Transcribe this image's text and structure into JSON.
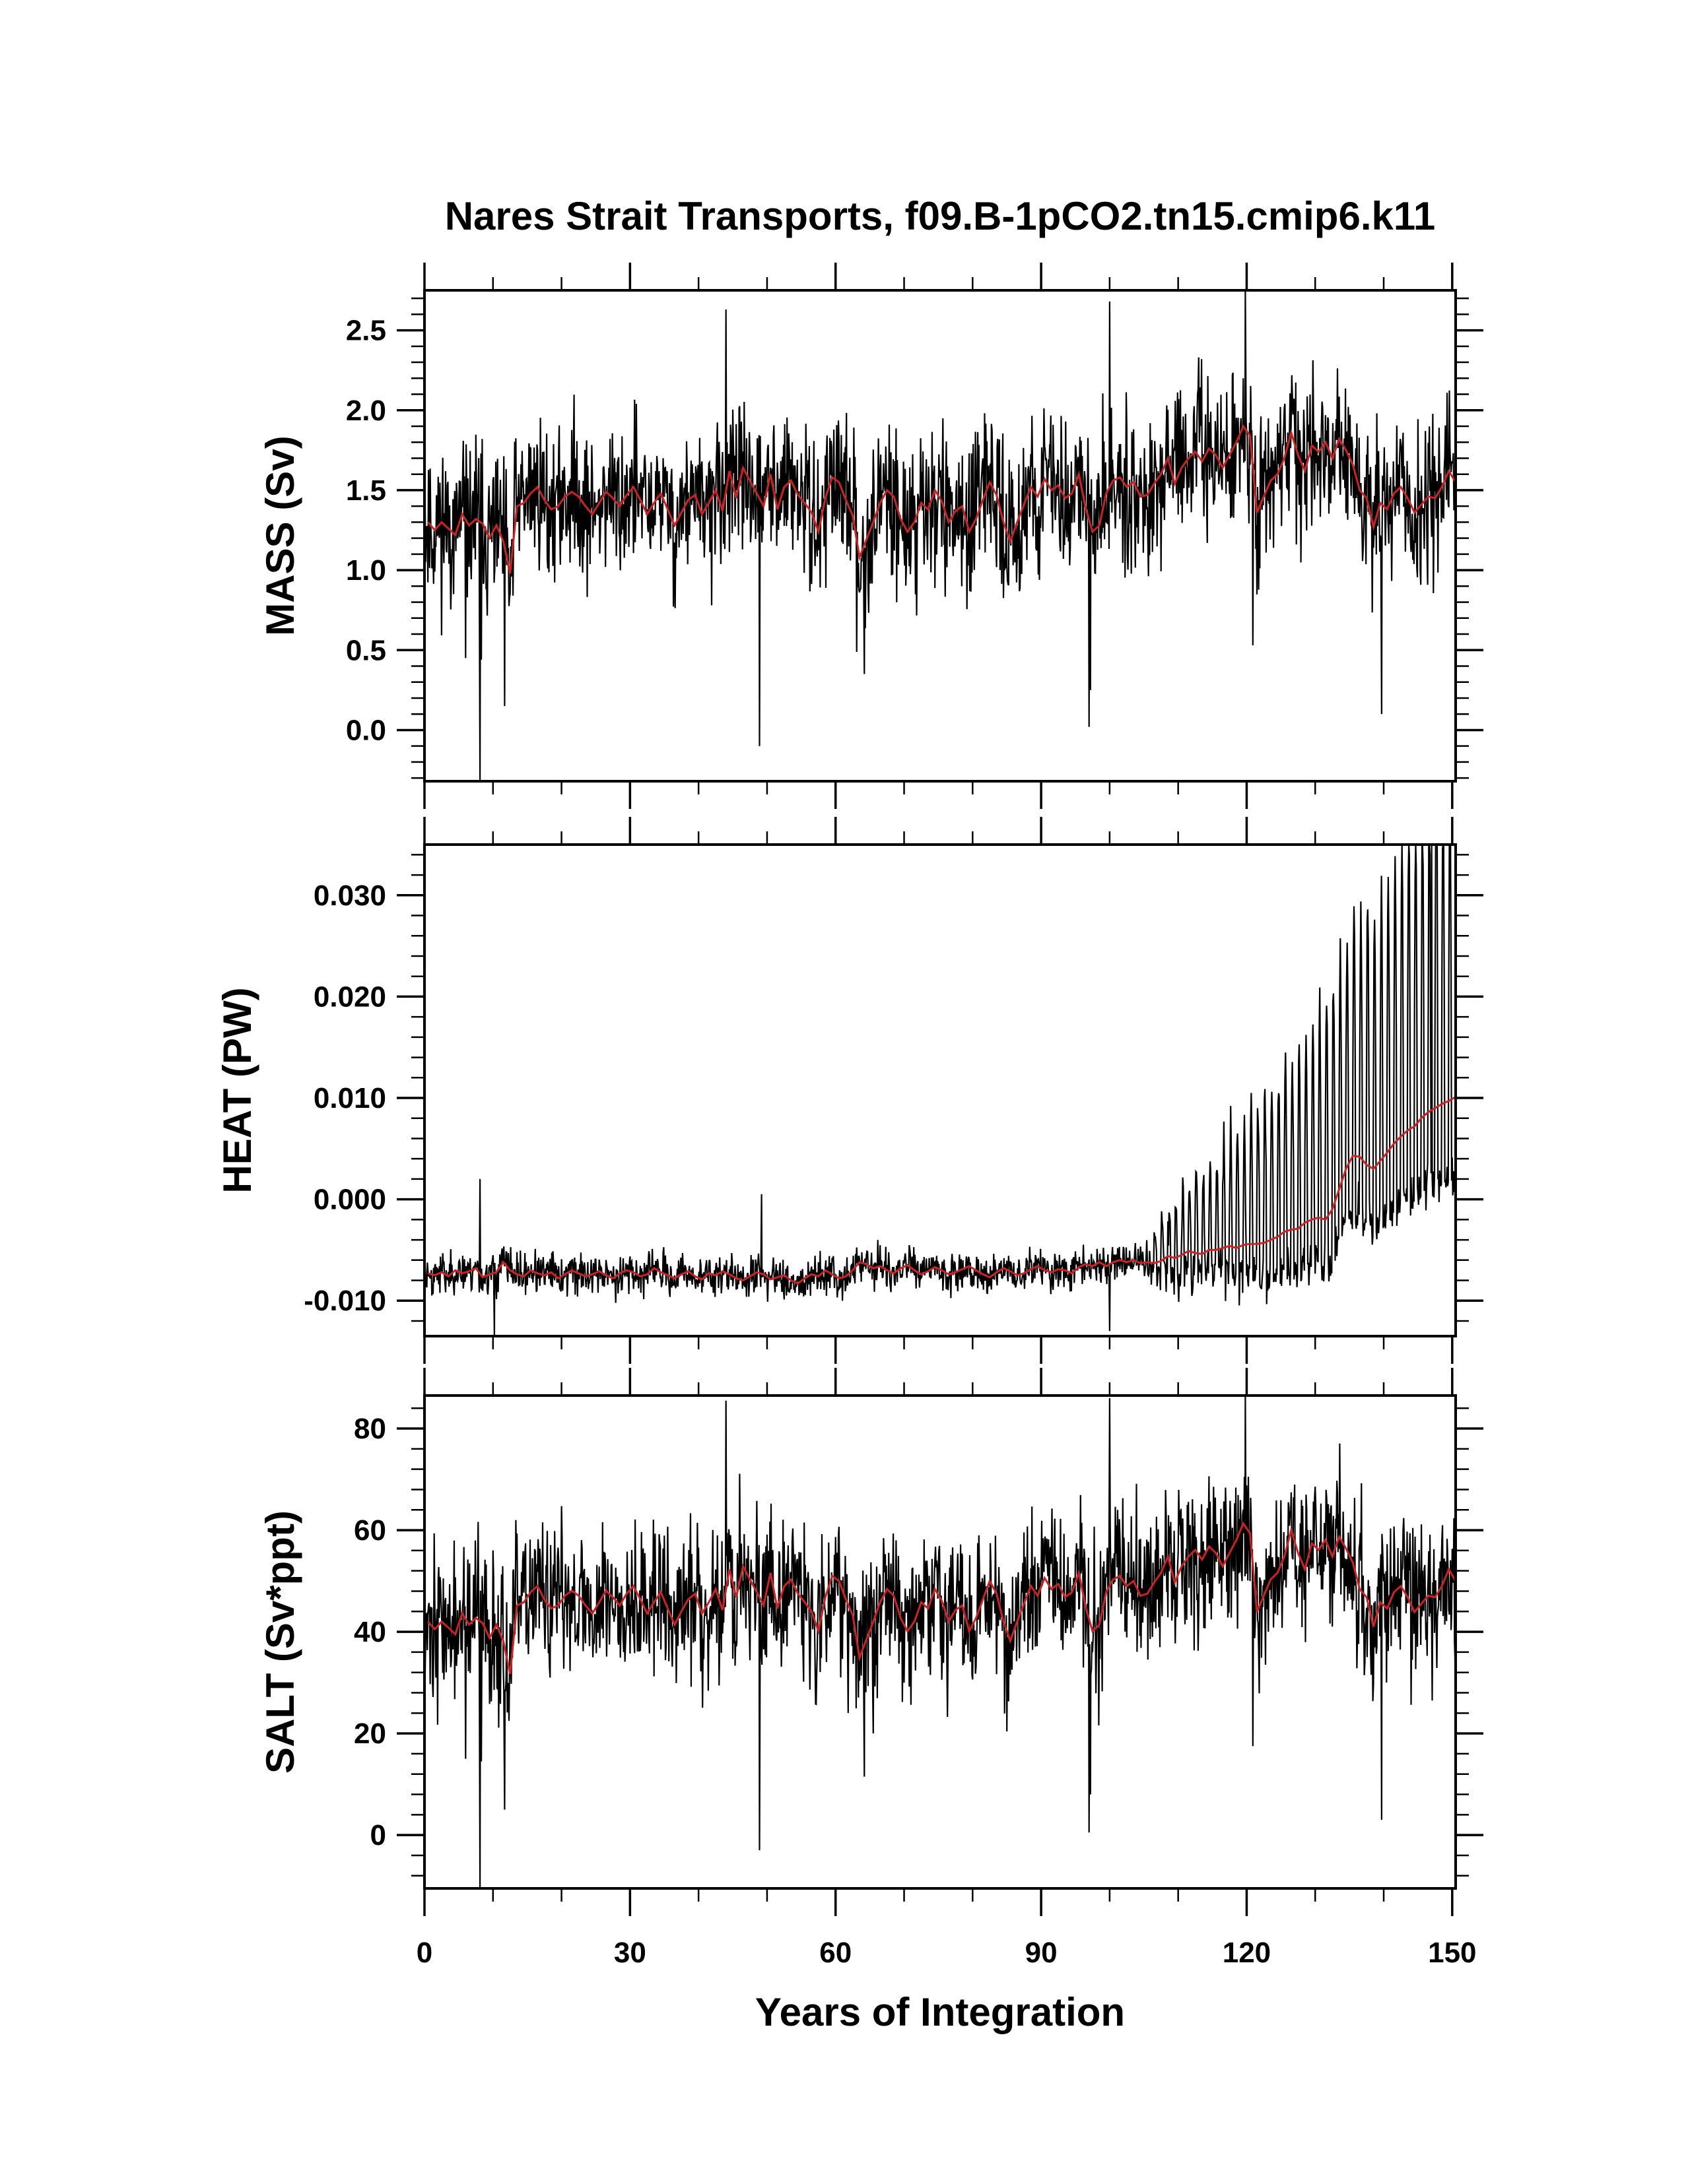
{
  "title": "Nares Strait Transports, f09.B-1pCO2.tn15.cmip6.k11",
  "colors": {
    "monthly_line": "#000000",
    "annual_line": "#cc2222",
    "axes": "#000000"
  },
  "chart_data": [
    {
      "type": "line",
      "name": "mass",
      "title": "",
      "xlabel": "",
      "ylabel": "MASS (Sv)",
      "xlim": [
        0,
        150.5
      ],
      "ylim": [
        -0.32,
        2.75
      ],
      "yticks": [
        0.0,
        0.5,
        1.0,
        1.5,
        2.0,
        2.5
      ],
      "yticklabels": [
        "0.0",
        "0.5",
        "1.0",
        "1.5",
        "2.0",
        "2.5"
      ],
      "yminor": 0.1,
      "annual_mean": [
        1.3,
        1.25,
        1.3,
        1.26,
        1.22,
        1.35,
        1.28,
        1.32,
        1.29,
        1.2,
        1.28,
        1.18,
        0.98,
        1.4,
        1.42,
        1.48,
        1.52,
        1.44,
        1.38,
        1.4,
        1.46,
        1.49,
        1.46,
        1.4,
        1.35,
        1.42,
        1.49,
        1.45,
        1.4,
        1.47,
        1.52,
        1.44,
        1.35,
        1.42,
        1.48,
        1.38,
        1.28,
        1.36,
        1.44,
        1.47,
        1.35,
        1.42,
        1.5,
        1.37,
        1.62,
        1.45,
        1.64,
        1.56,
        1.48,
        1.4,
        1.6,
        1.38,
        1.52,
        1.56,
        1.47,
        1.42,
        1.36,
        1.24,
        1.45,
        1.58,
        1.55,
        1.44,
        1.34,
        1.08,
        1.19,
        1.3,
        1.42,
        1.5,
        1.46,
        1.32,
        1.24,
        1.3,
        1.42,
        1.38,
        1.5,
        1.43,
        1.3,
        1.37,
        1.4,
        1.24,
        1.32,
        1.44,
        1.55,
        1.47,
        1.3,
        1.18,
        1.3,
        1.41,
        1.52,
        1.46,
        1.57,
        1.5,
        1.53,
        1.45,
        1.48,
        1.6,
        1.39,
        1.24,
        1.28,
        1.48,
        1.56,
        1.58,
        1.52,
        1.55,
        1.46,
        1.47,
        1.54,
        1.6,
        1.7,
        1.54,
        1.64,
        1.7,
        1.74,
        1.68,
        1.76,
        1.72,
        1.64,
        1.72,
        1.8,
        1.9,
        1.84,
        1.36,
        1.46,
        1.56,
        1.6,
        1.7,
        1.86,
        1.72,
        1.62,
        1.78,
        1.74,
        1.8,
        1.7,
        1.82,
        1.75,
        1.66,
        1.5,
        1.45,
        1.27,
        1.42,
        1.38,
        1.48,
        1.52,
        1.45,
        1.36,
        1.41,
        1.46,
        1.45,
        1.52,
        1.62,
        1.55
      ],
      "monthly_spread": 0.42,
      "monthly_min": -0.32,
      "monthly_max": 2.75,
      "spikes": [
        [
          8.1,
          -0.32
        ],
        [
          8.3,
          0.44
        ],
        [
          11.7,
          0.15
        ],
        [
          44.0,
          2.63
        ],
        [
          48.9,
          -0.1
        ],
        [
          64.2,
          0.35
        ],
        [
          97.0,
          0.02
        ],
        [
          97.2,
          0.25
        ],
        [
          100.0,
          2.68
        ],
        [
          119.8,
          2.75
        ],
        [
          120.9,
          0.53
        ],
        [
          139.7,
          0.1
        ],
        [
          6.0,
          0.45
        ]
      ],
      "seed": 11
    },
    {
      "type": "line",
      "name": "heat",
      "title": "",
      "xlabel": "",
      "ylabel": "HEAT (PW)",
      "xlim": [
        0,
        150.5
      ],
      "ylim": [
        -0.0135,
        0.035
      ],
      "yticks": [
        -0.01,
        0.0,
        0.01,
        0.02,
        0.03
      ],
      "yticklabels": [
        "-0.010",
        "0.000",
        "0.010",
        "0.020",
        "0.030"
      ],
      "yminor": 0.002,
      "annual_mean": [
        -0.0073,
        -0.0075,
        -0.0072,
        -0.0076,
        -0.007,
        -0.0073,
        -0.0071,
        -0.0068,
        -0.0077,
        -0.0074,
        -0.0072,
        -0.0062,
        -0.007,
        -0.0074,
        -0.0076,
        -0.007,
        -0.0073,
        -0.0075,
        -0.0072,
        -0.0078,
        -0.0074,
        -0.007,
        -0.0073,
        -0.0076,
        -0.0074,
        -0.0071,
        -0.0075,
        -0.0078,
        -0.0073,
        -0.007,
        -0.0072,
        -0.0076,
        -0.0074,
        -0.0068,
        -0.0072,
        -0.0075,
        -0.0078,
        -0.0074,
        -0.0071,
        -0.0076,
        -0.0079,
        -0.0073,
        -0.0075,
        -0.0071,
        -0.0074,
        -0.0078,
        -0.008,
        -0.0076,
        -0.0072,
        -0.0074,
        -0.0079,
        -0.0077,
        -0.0075,
        -0.008,
        -0.0083,
        -0.0078,
        -0.0074,
        -0.0076,
        -0.007,
        -0.0074,
        -0.0078,
        -0.0076,
        -0.007,
        -0.0062,
        -0.0064,
        -0.0068,
        -0.0066,
        -0.007,
        -0.0073,
        -0.0068,
        -0.0065,
        -0.007,
        -0.0074,
        -0.0071,
        -0.0067,
        -0.007,
        -0.0074,
        -0.0072,
        -0.0069,
        -0.0066,
        -0.007,
        -0.0074,
        -0.0077,
        -0.0072,
        -0.0068,
        -0.0071,
        -0.0075,
        -0.0073,
        -0.0069,
        -0.0066,
        -0.007,
        -0.0072,
        -0.0069,
        -0.007,
        -0.0073,
        -0.0067,
        -0.0064,
        -0.0066,
        -0.0062,
        -0.0066,
        -0.0062,
        -0.006,
        -0.0062,
        -0.006,
        -0.0063,
        -0.0062,
        -0.0063,
        -0.0061,
        -0.0056,
        -0.0058,
        -0.0055,
        -0.0051,
        -0.0053,
        -0.0054,
        -0.005,
        -0.005,
        -0.0048,
        -0.0046,
        -0.0048,
        -0.0045,
        -0.0044,
        -0.0044,
        -0.0043,
        -0.004,
        -0.0037,
        -0.0032,
        -0.003,
        -0.0029,
        -0.0023,
        -0.002,
        -0.0018,
        -0.002,
        -0.001,
        0.001,
        0.003,
        0.0043,
        0.0042,
        0.0034,
        0.003,
        0.0038,
        0.0046,
        0.0055,
        0.0062,
        0.0068,
        0.0072,
        0.008,
        0.0086,
        0.009,
        0.0094,
        0.0097,
        0.0101,
        0.0102
      ],
      "monthly_spread": 0.0018,
      "monthly_min": -0.0135,
      "monthly_max": 0.035,
      "spikes": [
        [
          8.1,
          0.002
        ],
        [
          10.2,
          -0.0135
        ],
        [
          49.2,
          0.0005
        ],
        [
          100.0,
          -0.013
        ],
        [
          147.0,
          0.035
        ],
        [
          147.8,
          0.035
        ]
      ],
      "seed": 23
    },
    {
      "type": "line",
      "name": "salt",
      "title": "",
      "xlabel": "Years of Integration",
      "ylabel": "SALT (Sv*ppt)",
      "xlim": [
        0,
        150.5
      ],
      "ylim": [
        -10.5,
        86.5
      ],
      "yticks": [
        0,
        20,
        40,
        60,
        80
      ],
      "yticklabels": [
        "0",
        "20",
        "40",
        "60",
        "80"
      ],
      "yminor": 4,
      "xticks": [
        0,
        30,
        60,
        90,
        120,
        150
      ],
      "xticklabels": [
        "0",
        "30",
        "60",
        "90",
        "120",
        "150"
      ],
      "xminor": 10,
      "annual_mean": [
        42.0,
        40.5,
        42.0,
        40.8,
        39.5,
        43.6,
        41.4,
        42.7,
        41.7,
        38.8,
        41.4,
        38.2,
        31.7,
        45.2,
        45.8,
        47.8,
        49.0,
        46.4,
        44.6,
        45.2,
        47.1,
        48.1,
        47.1,
        45.2,
        43.6,
        45.8,
        48.1,
        46.8,
        45.2,
        47.5,
        49.0,
        46.4,
        43.6,
        45.8,
        47.8,
        44.6,
        41.4,
        44.0,
        46.4,
        47.5,
        43.6,
        45.8,
        48.4,
        44.3,
        52.3,
        46.8,
        52.9,
        50.3,
        47.8,
        45.2,
        51.6,
        44.6,
        49.0,
        50.3,
        47.5,
        45.8,
        44.0,
        40.1,
        46.8,
        51.0,
        50.0,
        46.4,
        43.3,
        34.9,
        38.5,
        42.0,
        45.8,
        48.4,
        47.1,
        42.7,
        40.1,
        42.0,
        45.8,
        44.6,
        48.4,
        46.1,
        42.0,
        44.3,
        45.2,
        40.1,
        42.7,
        46.4,
        50.0,
        47.5,
        42.0,
        38.2,
        42.0,
        45.5,
        49.0,
        47.1,
        50.6,
        48.4,
        49.4,
        46.8,
        47.8,
        51.6,
        44.9,
        40.1,
        41.4,
        47.8,
        50.3,
        51.0,
        49.0,
        50.0,
        47.1,
        47.5,
        49.7,
        51.6,
        54.8,
        49.7,
        52.9,
        54.8,
        56.1,
        54.2,
        56.8,
        55.5,
        52.9,
        55.5,
        58.1,
        61.3,
        59.4,
        43.9,
        47.1,
        50.3,
        51.6,
        54.8,
        60.0,
        55.5,
        52.3,
        57.4,
        56.1,
        58.1,
        54.8,
        58.7,
        56.4,
        53.6,
        48.4,
        46.8,
        41.0,
        45.8,
        44.6,
        47.8,
        49.0,
        46.8,
        43.9,
        45.5,
        47.1,
        46.8,
        49.0,
        52.3,
        50.0
      ],
      "monthly_spread": 13.5,
      "monthly_min": -10.5,
      "monthly_max": 86.5,
      "spikes": [
        [
          8.1,
          -10.5
        ],
        [
          8.3,
          14.5
        ],
        [
          11.7,
          5.0
        ],
        [
          44.0,
          85.5
        ],
        [
          48.9,
          -3.0
        ],
        [
          64.2,
          11.5
        ],
        [
          97.0,
          0.5
        ],
        [
          97.2,
          8.0
        ],
        [
          100.0,
          86.0
        ],
        [
          119.8,
          86.5
        ],
        [
          120.9,
          17.5
        ],
        [
          139.7,
          3.0
        ],
        [
          6.0,
          15.0
        ]
      ],
      "seed": 37
    }
  ]
}
